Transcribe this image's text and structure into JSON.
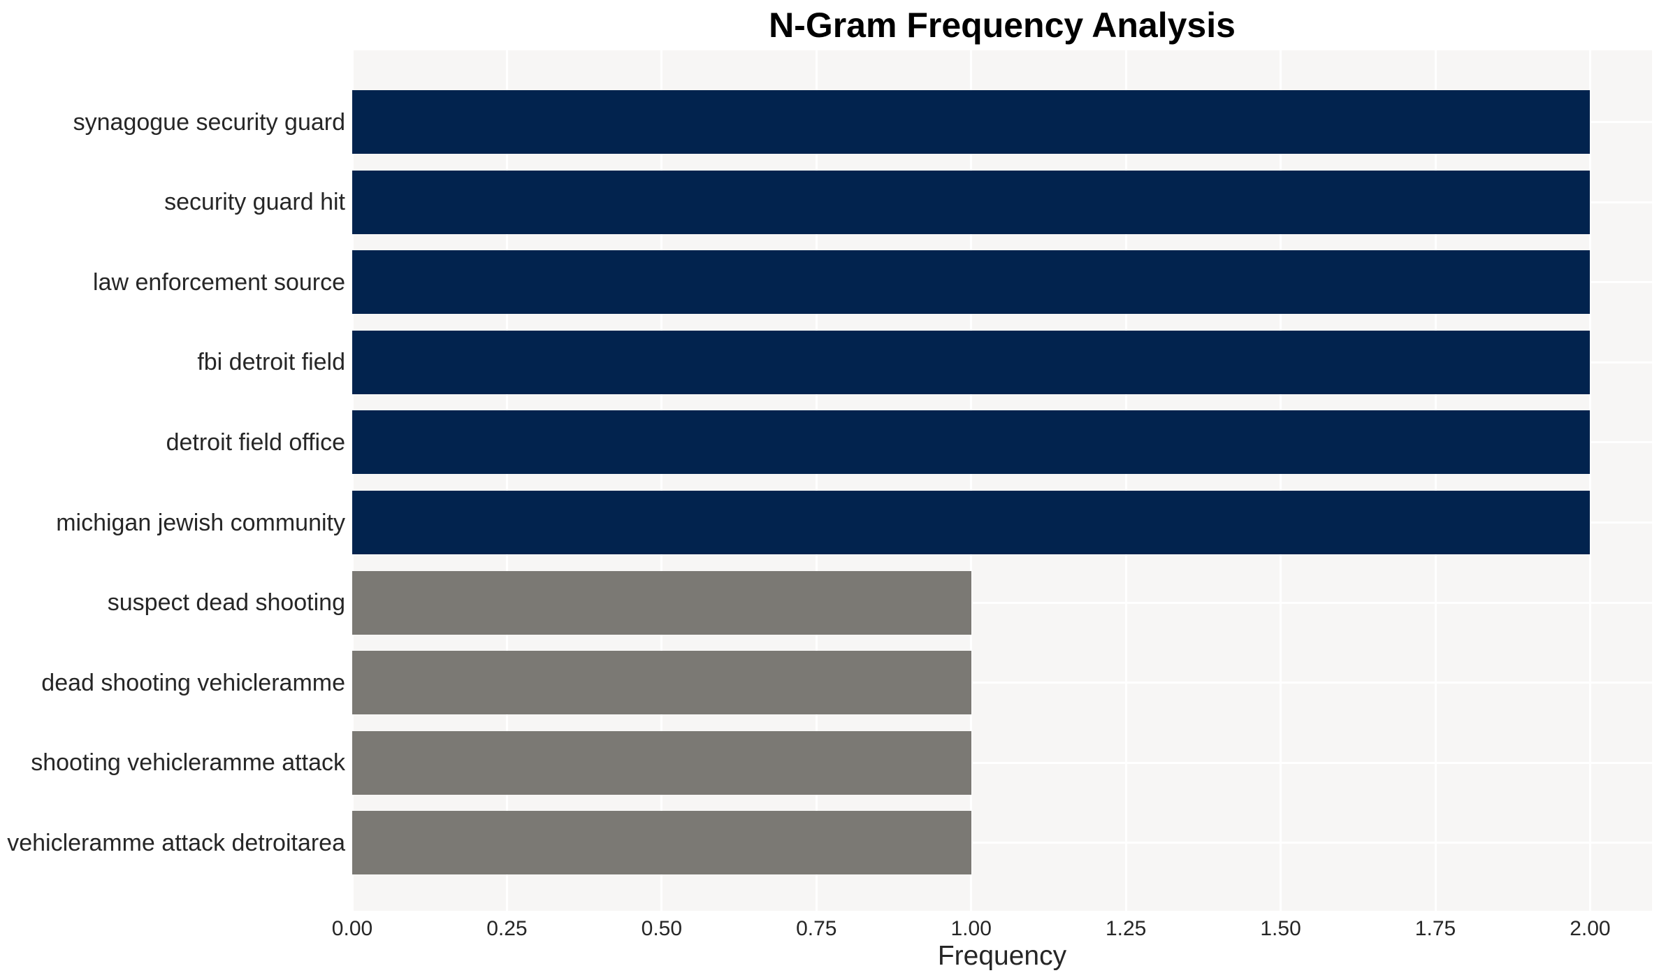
{
  "chart_data": {
    "type": "bar",
    "orientation": "horizontal",
    "title": "N-Gram Frequency Analysis",
    "xlabel": "Frequency",
    "ylabel": "",
    "categories": [
      "synagogue security guard",
      "security guard hit",
      "law enforcement source",
      "fbi detroit field",
      "detroit field office",
      "michigan jewish community",
      "suspect dead shooting",
      "dead shooting vehicleramme",
      "shooting vehicleramme attack",
      "vehicleramme attack detroitarea"
    ],
    "values": [
      2,
      2,
      2,
      2,
      2,
      2,
      1,
      1,
      1,
      1
    ],
    "bar_colors": [
      "#02234e",
      "#02234e",
      "#02234e",
      "#02234e",
      "#02234e",
      "#02234e",
      "#7b7974",
      "#7b7974",
      "#7b7974",
      "#7b7974"
    ],
    "xlim": [
      0,
      2.1
    ],
    "xtick_values": [
      0,
      0.25,
      0.5,
      0.75,
      1.0,
      1.25,
      1.5,
      1.75,
      2.0
    ],
    "xtick_labels": [
      "0.00",
      "0.25",
      "0.50",
      "0.75",
      "1.00",
      "1.25",
      "1.50",
      "1.75",
      "2.00"
    ],
    "grid": "on",
    "legend": "none",
    "colors": {
      "bar_high": "#02234e",
      "bar_low": "#7b7974",
      "plot_background": "#f7f6f5",
      "grid_line": "#ffffff",
      "axis_text": "#262626",
      "title_text": "#000000"
    }
  }
}
